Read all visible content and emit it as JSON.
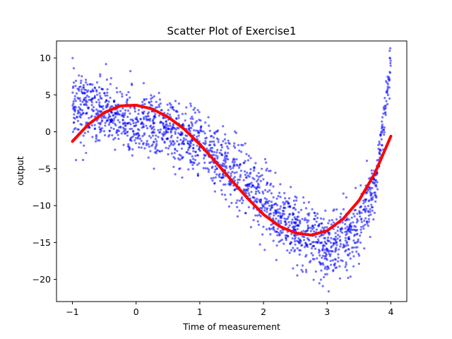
{
  "chart_data": {
    "type": "scatter",
    "title": "Scatter Plot of Exercise1",
    "xlabel": "Time of measurement",
    "ylabel": "output",
    "xlim": [
      -1.25,
      4.25
    ],
    "ylim": [
      -23,
      12.3
    ],
    "xticks": [
      -1,
      0,
      1,
      2,
      3,
      4
    ],
    "yticks": [
      -20,
      -15,
      -10,
      -5,
      0,
      5,
      10
    ],
    "grid": false,
    "legend": "none",
    "series": [
      {
        "kind": "scatter",
        "color": "#0000ff",
        "opacity": 0.55,
        "n_points": 2000,
        "x_range": [
          -1,
          4
        ],
        "trend_samples": [
          [
            -1.0,
            4.0
          ],
          [
            -0.5,
            2.5
          ],
          [
            0.0,
            1.0
          ],
          [
            0.5,
            0.0
          ],
          [
            1.0,
            -2.0
          ],
          [
            1.5,
            -5.0
          ],
          [
            2.0,
            -9.5
          ],
          [
            2.5,
            -13.0
          ],
          [
            3.0,
            -16.0
          ],
          [
            3.5,
            -13.0
          ],
          [
            3.75,
            -7.5
          ],
          [
            4.0,
            9.0
          ]
        ],
        "noise_sd": 2.2
      },
      {
        "kind": "line",
        "color": "#ff0000",
        "x": [
          -1.0,
          -0.75,
          -0.5,
          -0.25,
          0.0,
          0.25,
          0.5,
          0.75,
          1.0,
          1.25,
          1.5,
          1.75,
          2.0,
          2.25,
          2.5,
          2.75,
          3.0,
          3.25,
          3.5,
          3.75,
          4.0
        ],
        "y": [
          -1.3,
          1.0,
          2.6,
          3.5,
          3.6,
          3.1,
          2.0,
          0.4,
          -1.7,
          -4.1,
          -6.6,
          -9.0,
          -11.2,
          -12.8,
          -13.7,
          -14.0,
          -13.4,
          -11.8,
          -9.3,
          -5.6,
          -0.6
        ]
      }
    ]
  }
}
